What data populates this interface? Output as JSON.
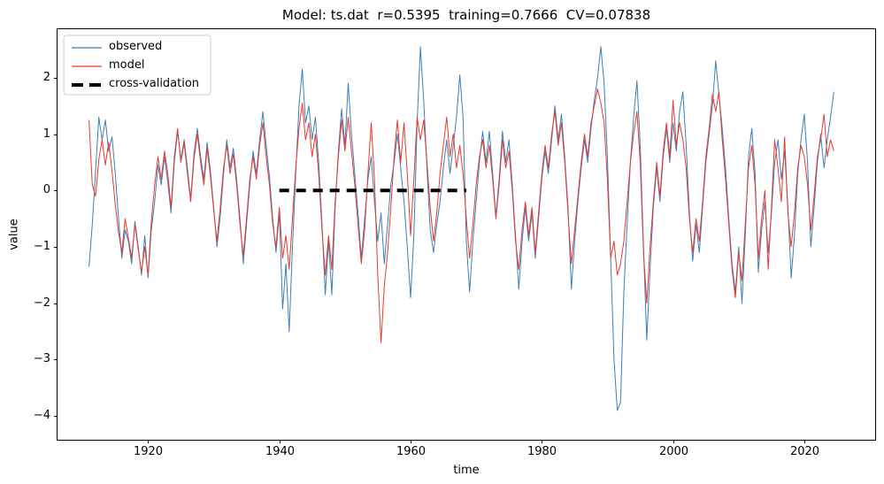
{
  "chart_data": {
    "type": "line",
    "title": "Model: ts.dat  r=0.5395  training=0.7666  CV=0.07838",
    "xlabel": "time",
    "ylabel": "value",
    "grid": false,
    "legend_position": "upper left",
    "xlim": [
      1906.2,
      2030.8
    ],
    "ylim": [
      -4.42,
      2.86
    ],
    "xticks": [
      1920,
      1940,
      1960,
      1980,
      2000,
      2020
    ],
    "xticklabels": [
      "1920",
      "1940",
      "1960",
      "1980",
      "2000",
      "2020"
    ],
    "yticks": [
      2,
      1,
      0,
      -1,
      -2,
      -3,
      -4
    ],
    "yticklabels": [
      "2",
      "1",
      "0",
      "−1",
      "−2",
      "−3",
      "−4"
    ],
    "background_color": "#ffffff",
    "axis_color": "#000000",
    "legend_edge_color": "#cccccc",
    "series": [
      {
        "name": "observed",
        "color": "#3d7fb8",
        "line_width": 1,
        "dash": null,
        "x_start": 1911.0,
        "x_step": 0.5,
        "values": [
          -1.35,
          -0.6,
          0.35,
          1.3,
          0.9,
          1.25,
          0.7,
          0.95,
          0.3,
          -0.5,
          -1.2,
          -0.7,
          -0.9,
          -1.3,
          -0.55,
          -1.0,
          -1.5,
          -0.8,
          -1.55,
          -0.7,
          -0.2,
          0.45,
          0.1,
          0.6,
          0.15,
          -0.4,
          0.5,
          1.05,
          0.55,
          0.9,
          0.4,
          -0.15,
          0.65,
          1.1,
          0.6,
          0.2,
          0.85,
          0.35,
          -0.3,
          -1.0,
          -0.45,
          0.3,
          0.9,
          0.4,
          0.75,
          0.2,
          -0.5,
          -1.3,
          -0.6,
          0.1,
          0.7,
          0.3,
          0.9,
          1.4,
          0.8,
          0.25,
          -0.5,
          -1.1,
          -0.4,
          -2.1,
          -1.3,
          -2.5,
          -1.0,
          0.3,
          1.5,
          2.15,
          1.2,
          1.5,
          0.9,
          1.3,
          0.5,
          -0.6,
          -1.85,
          -0.9,
          -1.85,
          -0.3,
          0.7,
          1.45,
          0.8,
          1.9,
          1.0,
          0.3,
          -0.4,
          -1.2,
          -0.5,
          0.2,
          0.6,
          -0.2,
          -0.9,
          -0.4,
          -1.3,
          -0.6,
          0.1,
          0.5,
          1.0,
          0.4,
          -0.2,
          -1.0,
          -1.9,
          -0.8,
          1.2,
          2.55,
          1.6,
          0.4,
          -0.7,
          -1.1,
          -0.6,
          -0.2,
          0.4,
          0.9,
          0.3,
          0.8,
          1.3,
          2.05,
          1.3,
          -0.9,
          -1.8,
          -0.9,
          -0.2,
          0.5,
          1.05,
          0.5,
          1.05,
          0.3,
          -0.45,
          0.2,
          1.05,
          0.5,
          0.9,
          0.1,
          -0.8,
          -1.75,
          -0.9,
          -0.3,
          -0.9,
          -0.4,
          -1.2,
          -0.5,
          0.2,
          0.7,
          0.3,
          0.9,
          1.5,
          0.9,
          1.35,
          0.6,
          -0.3,
          -1.75,
          -0.9,
          -0.2,
          0.4,
          0.9,
          0.5,
          1.1,
          1.6,
          2.0,
          2.55,
          1.9,
          0.6,
          -1.2,
          -3.0,
          -3.9,
          -3.75,
          -1.8,
          -0.6,
          0.5,
          1.3,
          1.95,
          0.8,
          -1.0,
          -2.65,
          -1.4,
          -0.3,
          0.4,
          -0.2,
          0.6,
          1.1,
          0.5,
          1.2,
          0.7,
          1.4,
          1.75,
          0.8,
          -0.4,
          -1.25,
          -0.6,
          -1.1,
          -0.3,
          0.5,
          1.0,
          1.5,
          2.3,
          1.7,
          1.1,
          0.4,
          -0.5,
          -1.3,
          -1.8,
          -1.0,
          -2.0,
          -0.8,
          0.6,
          1.1,
          0.3,
          -1.45,
          -0.7,
          -0.2,
          -1.1,
          -0.4,
          0.5,
          0.9,
          0.2,
          0.7,
          -0.3,
          -1.55,
          -0.8,
          0.3,
          0.9,
          1.35,
          0.5,
          -1.0,
          -0.3,
          0.5,
          1.0,
          0.4,
          0.9,
          1.3,
          1.75
        ]
      },
      {
        "name": "model",
        "color": "#e8392f",
        "line_width": 1,
        "dash": null,
        "x_start": 1911.0,
        "x_step": 0.5,
        "values": [
          1.25,
          0.1,
          -0.1,
          0.55,
          0.9,
          0.45,
          0.85,
          0.35,
          -0.25,
          -0.75,
          -1.1,
          -0.5,
          -0.85,
          -1.2,
          -0.6,
          -1.05,
          -1.45,
          -1.0,
          -1.5,
          -0.55,
          0.1,
          0.6,
          0.2,
          0.7,
          0.3,
          -0.3,
          0.6,
          1.1,
          0.5,
          0.85,
          0.3,
          -0.2,
          0.55,
          1.0,
          0.5,
          0.1,
          0.75,
          0.25,
          -0.35,
          -0.9,
          -0.3,
          0.4,
          0.8,
          0.3,
          0.65,
          0.1,
          -0.6,
          -1.15,
          -0.5,
          0.2,
          0.6,
          0.2,
          0.8,
          1.2,
          0.6,
          0.1,
          -0.6,
          -1.0,
          -0.3,
          -1.2,
          -0.8,
          -1.4,
          -0.5,
          0.4,
          1.1,
          1.55,
          0.9,
          1.2,
          0.6,
          1.0,
          0.3,
          -0.7,
          -1.5,
          -0.8,
          -1.4,
          -0.2,
          0.6,
          1.25,
          0.7,
          1.3,
          0.7,
          0.1,
          -0.6,
          -1.3,
          -0.7,
          0.3,
          1.2,
          0.2,
          -1.5,
          -2.7,
          -1.7,
          -1.1,
          -0.3,
          0.6,
          1.25,
          0.5,
          1.2,
          0.3,
          -0.8,
          0.2,
          1.3,
          0.9,
          1.25,
          0.5,
          -0.3,
          -0.9,
          -0.4,
          0.3,
          0.8,
          1.3,
          0.6,
          1.0,
          0.4,
          0.8,
          0.3,
          -0.5,
          -1.2,
          -0.6,
          0.1,
          0.6,
          0.9,
          0.4,
          0.8,
          0.2,
          -0.5,
          0.1,
          0.9,
          0.4,
          0.7,
          0.0,
          -0.9,
          -1.4,
          -0.7,
          -0.2,
          -0.8,
          -0.3,
          -1.1,
          -0.4,
          0.3,
          0.8,
          0.4,
          1.0,
          1.4,
          0.8,
          1.2,
          0.5,
          -0.4,
          -1.3,
          -0.7,
          -0.1,
          0.5,
          1.0,
          0.6,
          1.2,
          1.5,
          1.8,
          1.55,
          1.2,
          0.2,
          -1.2,
          -0.9,
          -1.5,
          -1.3,
          -0.9,
          -0.2,
          0.5,
          1.0,
          1.4,
          0.5,
          -1.1,
          -2.0,
          -1.0,
          -0.2,
          0.5,
          -0.1,
          0.7,
          1.2,
          0.6,
          1.6,
          0.8,
          1.2,
          0.9,
          0.4,
          -0.5,
          -1.1,
          -0.5,
          -0.9,
          -0.2,
          0.6,
          1.1,
          1.7,
          1.4,
          1.75,
          0.9,
          0.2,
          -0.6,
          -1.4,
          -1.9,
          -1.1,
          -1.6,
          -0.6,
          0.4,
          0.8,
          0.1,
          -1.2,
          -0.5,
          0.0,
          -1.4,
          -0.3,
          0.9,
          0.4,
          -0.2,
          0.95,
          -0.4,
          -1.0,
          -0.4,
          0.4,
          0.8,
          0.6,
          0.1,
          -0.7,
          -0.1,
          0.6,
          0.9,
          1.35,
          0.6,
          0.9,
          0.7
        ]
      },
      {
        "name": "cross-validation",
        "color": "#000000",
        "line_width": 4,
        "dash": [
          11,
          8
        ],
        "x": [
          1940.0,
          1968.5
        ],
        "values": [
          0,
          0
        ]
      }
    ]
  }
}
